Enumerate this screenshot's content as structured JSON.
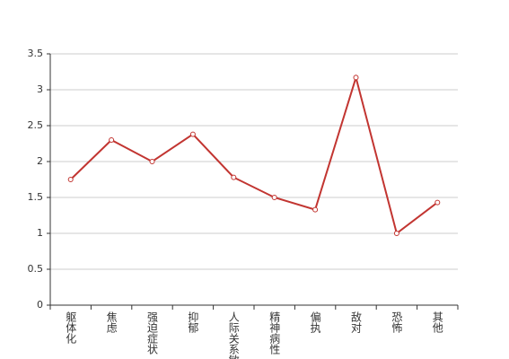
{
  "chart_data": {
    "type": "line",
    "categories": [
      "躯体化",
      "焦虑",
      "强迫症状",
      "抑郁",
      "人际关系敏感",
      "精神病性",
      "偏执",
      "敌对",
      "恐怖",
      "其他"
    ],
    "values": [
      1.75,
      2.3,
      2.0,
      2.38,
      1.78,
      1.5,
      1.33,
      3.17,
      1.0,
      1.43
    ],
    "color": "#c23531",
    "ylim": [
      0,
      3.5
    ],
    "yticks": [
      0,
      0.5,
      1,
      1.5,
      2,
      2.5,
      3,
      3.5
    ],
    "grid": true
  }
}
